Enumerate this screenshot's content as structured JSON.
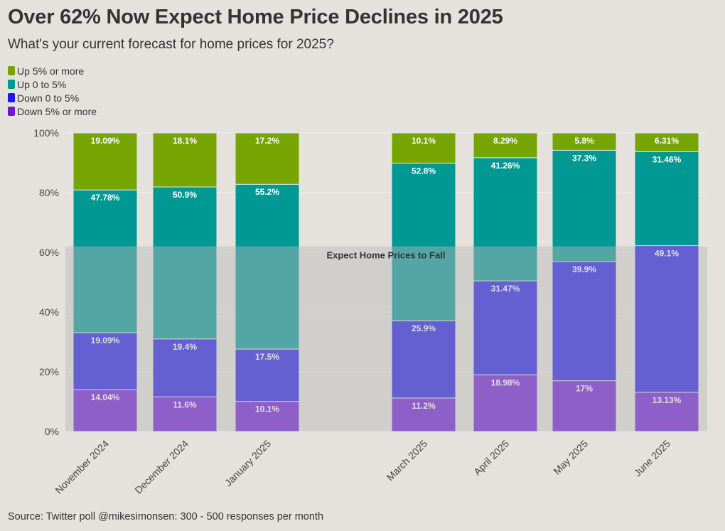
{
  "header": {
    "title": "Over 62% Now Expect Home Price Declines in 2025",
    "subtitle": "What's your current forecast for home prices for 2025?"
  },
  "source": "Source: Twitter poll @mikesimonsen: 300 - 500 responses per month",
  "colors": {
    "background": "#e5e2dd",
    "up_5_or_more": "#76a400",
    "up_0_to_5": "#009893",
    "down_0_to_5": "#2019e6",
    "down_5_or_more": "#6c17d6",
    "shade": "#b8b8b8"
  },
  "chart_data": {
    "type": "bar",
    "stacked": true,
    "categories": [
      "November 2024",
      "December 2024",
      "January 2025",
      "March 2025",
      "April 2025",
      "May 2025",
      "June 2025"
    ],
    "series": [
      {
        "name": "Down 5% or more",
        "color": "#6c17d6",
        "values": [
          14.04,
          11.6,
          10.1,
          11.2,
          18.98,
          17,
          13.13
        ],
        "labels": [
          "14.04%",
          "11.6%",
          "10.1%",
          "11.2%",
          "18.98%",
          "17%",
          "13.13%"
        ]
      },
      {
        "name": "Down 0 to 5%",
        "color": "#2019e6",
        "values": [
          19.09,
          19.4,
          17.5,
          25.9,
          31.47,
          39.9,
          49.1
        ],
        "labels": [
          "19.09%",
          "19.4%",
          "17.5%",
          "25.9%",
          "31.47%",
          "39.9%",
          "49.1%"
        ]
      },
      {
        "name": "Up 0 to 5%",
        "color": "#009893",
        "values": [
          47.78,
          50.9,
          55.2,
          52.8,
          41.26,
          37.3,
          31.46
        ],
        "labels": [
          "47.78%",
          "50.9%",
          "55.2%",
          "52.8%",
          "41.26%",
          "37.3%",
          "31.46%"
        ]
      },
      {
        "name": "Up 5% or more",
        "color": "#76a400",
        "values": [
          19.09,
          18.1,
          17.2,
          10.1,
          8.29,
          5.8,
          6.31
        ],
        "labels": [
          "19.09%",
          "18.1%",
          "17.2%",
          "10.1%",
          "8.29%",
          "5.8%",
          "6.31%"
        ]
      }
    ],
    "legend_order": [
      "Up 5% or more",
      "Up 0 to 5%",
      "Down 0 to 5%",
      "Down 5% or more"
    ],
    "yticks": [
      "0%",
      "20%",
      "40%",
      "60%",
      "80%",
      "100%"
    ],
    "ylim": [
      0,
      100
    ],
    "annotation": {
      "text": "Expect Home Prices to Fall",
      "y_top": 62
    },
    "legend_position": "top-left",
    "grid": true
  }
}
